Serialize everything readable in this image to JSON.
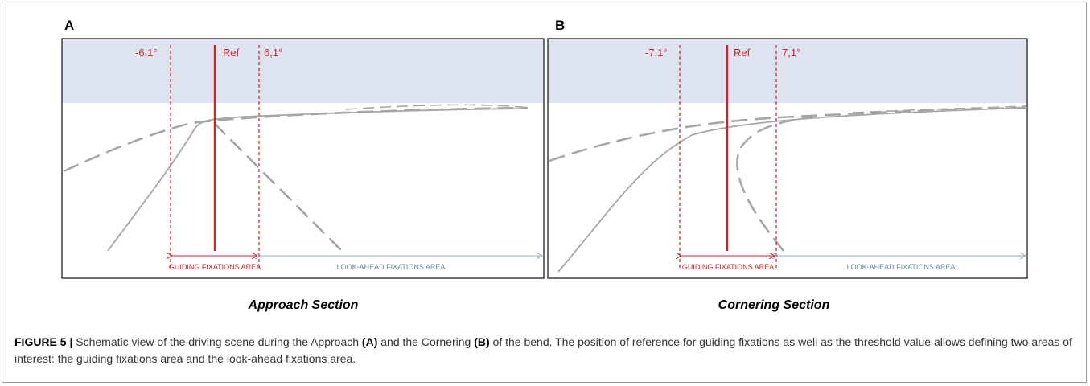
{
  "panels": [
    {
      "letter": "A",
      "threshold_left": "-6,1°",
      "ref": "Ref",
      "threshold_right": "6,1°",
      "guiding_area": "GUIDING FIXATIONS AREA",
      "lookahead_area": "LOOK-AHEAD FIXATIONS AREA",
      "section": "Approach Section"
    },
    {
      "letter": "B",
      "threshold_left": "-7,1°",
      "ref": "Ref",
      "threshold_right": "7,1°",
      "guiding_area": "GUIDING FIXATIONS AREA",
      "lookahead_area": "LOOK-AHEAD FIXATIONS AREA",
      "section": "Cornering Section"
    }
  ],
  "caption": {
    "label": "FIGURE 5 |",
    "part1": " Schematic view of the driving scene during the Approach ",
    "a": "(A)",
    "part2": " and the Cornering ",
    "b": "(B)",
    "part3": " of the bend. The position of reference for guiding fixations as well as the threshold value allows defining two areas of interest: the guiding fixations area and the look-ahead fixations area."
  },
  "colors": {
    "sky": "#dde4ef",
    "red": "#d41f26",
    "road": "#a6a6a6",
    "arrow_blue": "#8fa9c7",
    "label_blue": "#6b86a6"
  }
}
